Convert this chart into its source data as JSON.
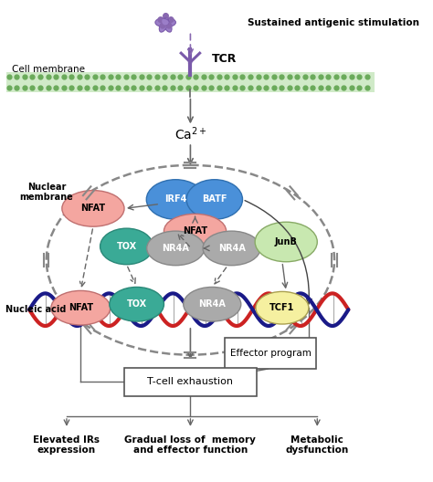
{
  "bg_color": "#ffffff",
  "colors": {
    "IRF4": "#4a90d9",
    "BATF": "#4a90d9",
    "NFAT_pink": "#f4a6a0",
    "TOX_teal": "#3aaa96",
    "NR4A_gray": "#aaaaaa",
    "JunB_green": "#c8e8b0",
    "TCF1_yellow": "#f5f0a0",
    "dna_red": "#cc2222",
    "dna_blue": "#1a1a88",
    "mem_green": "#6aaa5a",
    "mem_fill": "#d0eac8",
    "arrow_gray": "#666666",
    "nuc_ellipse": "#888888",
    "box_border": "#555555"
  },
  "labels": {
    "sustained": "Sustained antigenic stimulation",
    "TCR": "TCR",
    "cell_membrane": "Cell membrane",
    "nuclear_membrane": "Nuclear\nmembrane",
    "nucleic_acid": "Nucleic acid",
    "effector": "Effector program",
    "tcell_exhaustion": "T-cell exhaustion",
    "elevated": "Elevated IRs\nexpression",
    "gradual": "Gradual loss of  memory\nand effector function",
    "metabolic": "Metabolic\ndysfunction"
  },
  "mol_labels": {
    "IRF4": "IRF4",
    "BATF": "BATF",
    "NFAT": "NFAT",
    "TOX": "TOX",
    "NR4A": "NR4A",
    "JunB": "JunB",
    "TCF1": "TCF1"
  }
}
